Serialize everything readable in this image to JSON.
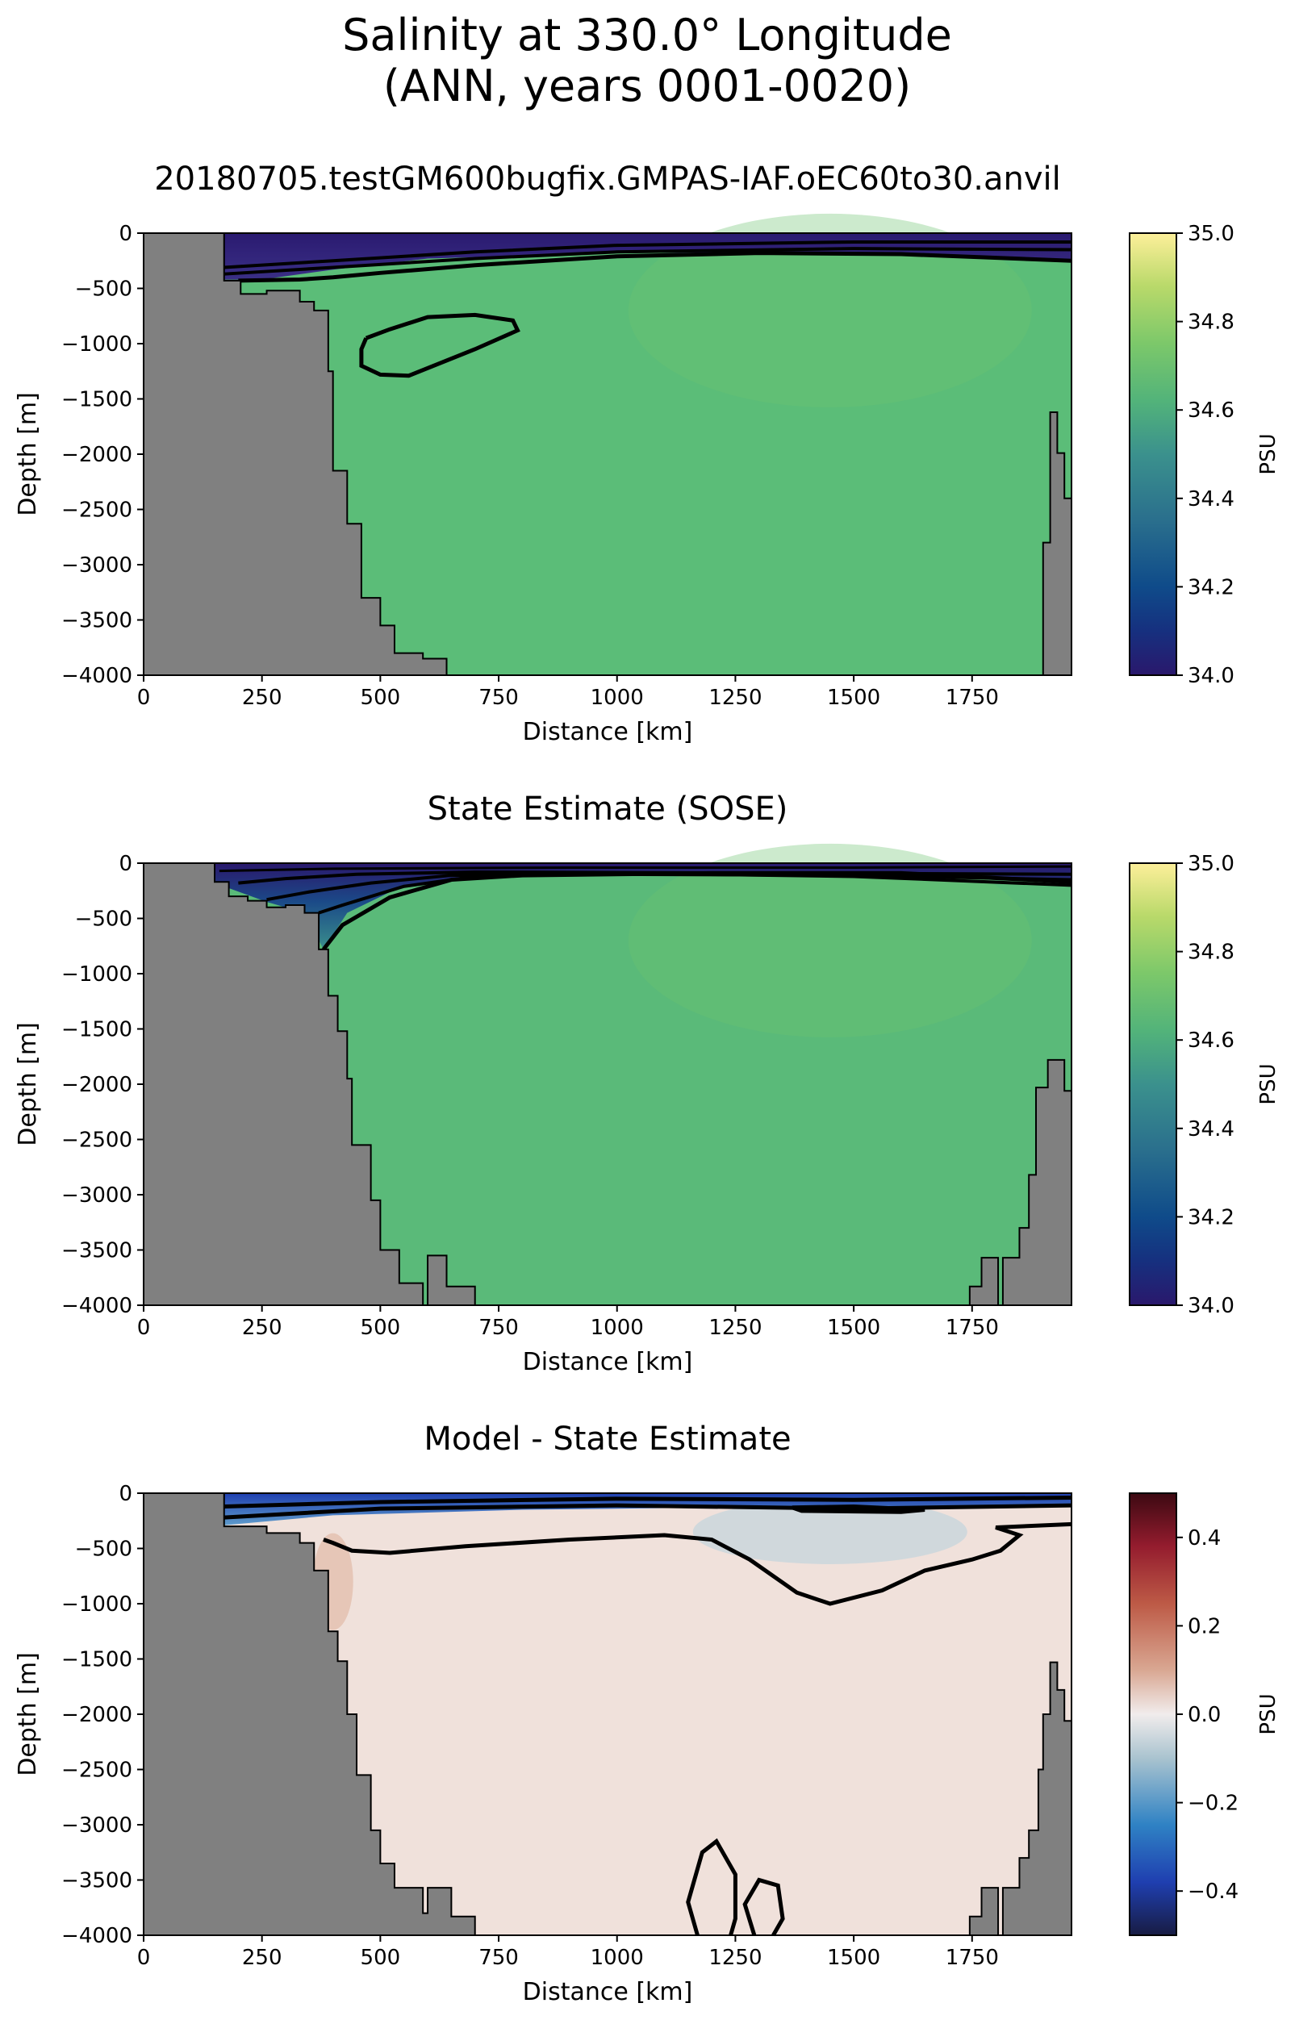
{
  "figure": {
    "title_line1": "Salinity at 330.0° Longitude",
    "title_line2": "(ANN, years 0001-0020)"
  },
  "chart_data": [
    {
      "type": "heatmap",
      "title": "20180705.testGM600bugfix.GMPAS-IAF.oEC60to30.anvil",
      "xlabel": "Distance [km]",
      "ylabel": "Depth [m]",
      "xlim": [
        0,
        1960
      ],
      "ylim": [
        -4000,
        0
      ],
      "xticks": [
        0,
        250,
        500,
        750,
        1000,
        1250,
        1500,
        1750
      ],
      "yticks": [
        0,
        -500,
        -1000,
        -1500,
        -2000,
        -2500,
        -3000,
        -3500,
        -4000
      ],
      "colorbar": {
        "label": "PSU",
        "colormap": "haline",
        "vmin": 34.0,
        "vmax": 35.0,
        "ticks": [
          "34.0",
          "34.2",
          "34.4",
          "34.6",
          "34.8",
          "35.0"
        ]
      },
      "interior_value": 34.63,
      "surface_value": 34.05,
      "contour_value": 34.64,
      "contour_region_km": [
        460,
        780
      ],
      "contour_region_depth": [
        -1300,
        -740
      ],
      "bathymetry_left": [
        [
          0,
          0
        ],
        [
          170,
          0
        ],
        [
          170,
          -430
        ],
        [
          205,
          -430
        ],
        [
          205,
          -550
        ],
        [
          260,
          -550
        ],
        [
          260,
          -520
        ],
        [
          330,
          -520
        ],
        [
          330,
          -620
        ],
        [
          360,
          -620
        ],
        [
          360,
          -700
        ],
        [
          390,
          -700
        ],
        [
          390,
          -1250
        ],
        [
          400,
          -1250
        ],
        [
          400,
          -2150
        ],
        [
          430,
          -2150
        ],
        [
          430,
          -2630
        ],
        [
          460,
          -2630
        ],
        [
          460,
          -3300
        ],
        [
          500,
          -3300
        ],
        [
          500,
          -3550
        ],
        [
          530,
          -3550
        ],
        [
          530,
          -3800
        ],
        [
          590,
          -3800
        ],
        [
          590,
          -3850
        ],
        [
          640,
          -3850
        ],
        [
          640,
          -4000
        ],
        [
          0,
          -4000
        ]
      ],
      "bathymetry_right": [
        [
          1960,
          0
        ],
        [
          1960,
          -2400
        ],
        [
          1945,
          -2400
        ],
        [
          1945,
          -1990
        ],
        [
          1930,
          -1990
        ],
        [
          1930,
          -1620
        ],
        [
          1915,
          -1620
        ],
        [
          1915,
          -2800
        ],
        [
          1900,
          -2800
        ],
        [
          1900,
          -4000
        ],
        [
          1960,
          -4000
        ]
      ]
    },
    {
      "type": "heatmap",
      "title": "State Estimate (SOSE)",
      "xlabel": "Distance [km]",
      "ylabel": "Depth [m]",
      "xlim": [
        0,
        1960
      ],
      "ylim": [
        -4000,
        0
      ],
      "xticks": [
        0,
        250,
        500,
        750,
        1000,
        1250,
        1500,
        1750
      ],
      "yticks": [
        0,
        -500,
        -1000,
        -1500,
        -2000,
        -2500,
        -3000,
        -3500,
        -4000
      ],
      "colorbar": {
        "label": "PSU",
        "colormap": "haline",
        "vmin": 34.0,
        "vmax": 35.0,
        "ticks": [
          "34.0",
          "34.2",
          "34.4",
          "34.6",
          "34.8",
          "35.0"
        ]
      },
      "interior_value": 34.62,
      "surface_value": 34.1,
      "bathymetry_left": [
        [
          0,
          0
        ],
        [
          150,
          0
        ],
        [
          150,
          -170
        ],
        [
          180,
          -170
        ],
        [
          180,
          -300
        ],
        [
          220,
          -300
        ],
        [
          220,
          -340
        ],
        [
          260,
          -340
        ],
        [
          260,
          -400
        ],
        [
          300,
          -400
        ],
        [
          300,
          -380
        ],
        [
          340,
          -380
        ],
        [
          340,
          -450
        ],
        [
          370,
          -450
        ],
        [
          370,
          -780
        ],
        [
          390,
          -780
        ],
        [
          390,
          -1200
        ],
        [
          410,
          -1200
        ],
        [
          410,
          -1520
        ],
        [
          430,
          -1520
        ],
        [
          430,
          -1950
        ],
        [
          440,
          -1950
        ],
        [
          440,
          -2550
        ],
        [
          480,
          -2550
        ],
        [
          480,
          -3050
        ],
        [
          500,
          -3050
        ],
        [
          500,
          -3500
        ],
        [
          540,
          -3500
        ],
        [
          540,
          -3800
        ],
        [
          590,
          -3800
        ],
        [
          590,
          -4000
        ],
        [
          600,
          -4000
        ],
        [
          600,
          -3550
        ],
        [
          640,
          -3550
        ],
        [
          640,
          -3830
        ],
        [
          700,
          -3830
        ],
        [
          700,
          -4000
        ],
        [
          0,
          -4000
        ]
      ],
      "bathymetry_right": [
        [
          1960,
          0
        ],
        [
          1960,
          -2060
        ],
        [
          1945,
          -2060
        ],
        [
          1945,
          -1780
        ],
        [
          1910,
          -1780
        ],
        [
          1910,
          -2030
        ],
        [
          1885,
          -2030
        ],
        [
          1885,
          -2820
        ],
        [
          1870,
          -2820
        ],
        [
          1870,
          -3300
        ],
        [
          1850,
          -3300
        ],
        [
          1850,
          -3570
        ],
        [
          1815,
          -3570
        ],
        [
          1815,
          -4000
        ],
        [
          1805,
          -4000
        ],
        [
          1805,
          -3570
        ],
        [
          1770,
          -3570
        ],
        [
          1770,
          -3830
        ],
        [
          1745,
          -3830
        ],
        [
          1745,
          -4000
        ],
        [
          1960,
          -4000
        ]
      ]
    },
    {
      "type": "heatmap",
      "title": "Model - State Estimate",
      "xlabel": "Distance [km]",
      "ylabel": "Depth [m]",
      "xlim": [
        0,
        1960
      ],
      "ylim": [
        -4000,
        0
      ],
      "xticks": [
        0,
        250,
        500,
        750,
        1000,
        1250,
        1500,
        1750
      ],
      "yticks": [
        0,
        -500,
        -1000,
        -1500,
        -2000,
        -2500,
        -3000,
        -3500,
        -4000
      ],
      "colorbar": {
        "label": "PSU",
        "colormap": "balance",
        "vmin": -0.5,
        "vmax": 0.5,
        "ticks": [
          "−0.4",
          "−0.2",
          "0.0",
          "0.2",
          "0.4"
        ]
      },
      "interior_value": 0.03,
      "surface_value": -0.25,
      "bathymetry_left": [
        [
          0,
          0
        ],
        [
          170,
          0
        ],
        [
          170,
          -300
        ],
        [
          260,
          -300
        ],
        [
          260,
          -360
        ],
        [
          330,
          -360
        ],
        [
          330,
          -450
        ],
        [
          360,
          -450
        ],
        [
          360,
          -700
        ],
        [
          390,
          -700
        ],
        [
          390,
          -1250
        ],
        [
          410,
          -1250
        ],
        [
          410,
          -1520
        ],
        [
          430,
          -1520
        ],
        [
          430,
          -2000
        ],
        [
          450,
          -2000
        ],
        [
          450,
          -2550
        ],
        [
          480,
          -2550
        ],
        [
          480,
          -3050
        ],
        [
          500,
          -3050
        ],
        [
          500,
          -3350
        ],
        [
          530,
          -3350
        ],
        [
          530,
          -3570
        ],
        [
          590,
          -3570
        ],
        [
          590,
          -3800
        ],
        [
          600,
          -3800
        ],
        [
          600,
          -3570
        ],
        [
          650,
          -3570
        ],
        [
          650,
          -3830
        ],
        [
          700,
          -3830
        ],
        [
          700,
          -4000
        ],
        [
          0,
          -4000
        ]
      ],
      "bathymetry_right": [
        [
          1960,
          0
        ],
        [
          1960,
          -2060
        ],
        [
          1945,
          -2060
        ],
        [
          1945,
          -1780
        ],
        [
          1930,
          -1780
        ],
        [
          1930,
          -1530
        ],
        [
          1915,
          -1530
        ],
        [
          1915,
          -2000
        ],
        [
          1900,
          -2000
        ],
        [
          1900,
          -2500
        ],
        [
          1890,
          -2500
        ],
        [
          1890,
          -3050
        ],
        [
          1870,
          -3050
        ],
        [
          1870,
          -3300
        ],
        [
          1850,
          -3300
        ],
        [
          1850,
          -3570
        ],
        [
          1815,
          -3570
        ],
        [
          1815,
          -4000
        ],
        [
          1805,
          -4000
        ],
        [
          1805,
          -3570
        ],
        [
          1770,
          -3570
        ],
        [
          1770,
          -3830
        ],
        [
          1745,
          -3830
        ],
        [
          1745,
          -4000
        ],
        [
          1960,
          -4000
        ]
      ]
    }
  ]
}
